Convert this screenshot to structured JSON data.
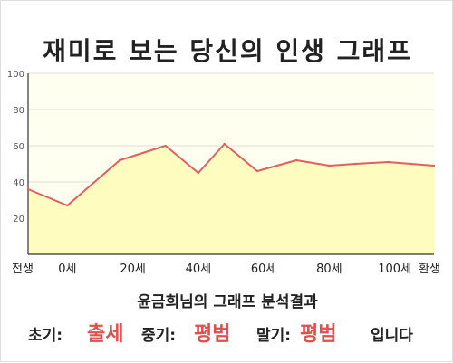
{
  "title": "재미로 보는 당신의 인생 그래프",
  "subtitle": "윤금희님의 그래프 분석결과",
  "verdict": {
    "early_label": "초기:",
    "early_value": "출세",
    "middle_label": "중기:",
    "middle_value": "평범",
    "late_label": "말기:",
    "late_value": "평범",
    "ending": "입니다"
  },
  "colors": {
    "line": "#e06060",
    "fill": "#fffcc0",
    "plot_bg": "#fffff0",
    "grid": "#dddddd",
    "accent": "#e05050"
  },
  "chart_data": {
    "type": "area",
    "title": "재미로 보는 당신의 인생 그래프",
    "xlabel": "",
    "ylabel": "",
    "ylim": [
      0,
      100
    ],
    "yticks": [
      20,
      40,
      60,
      80,
      100
    ],
    "xlim": [
      -12,
      112
    ],
    "xticks": [
      {
        "value": -12,
        "label": "전생"
      },
      {
        "value": 0,
        "label": "0세"
      },
      {
        "value": 20,
        "label": "20세"
      },
      {
        "value": 40,
        "label": "40세"
      },
      {
        "value": 60,
        "label": "60세"
      },
      {
        "value": 80,
        "label": "80세"
      },
      {
        "value": 100,
        "label": "100세"
      },
      {
        "value": 112,
        "label": "환생"
      }
    ],
    "grid": true,
    "x": [
      -12,
      0,
      16,
      30,
      40,
      48,
      58,
      70,
      80,
      88,
      98,
      105,
      112
    ],
    "values": [
      36,
      27,
      52,
      60,
      45,
      61,
      46,
      52,
      49,
      50,
      51,
      50,
      49
    ]
  }
}
